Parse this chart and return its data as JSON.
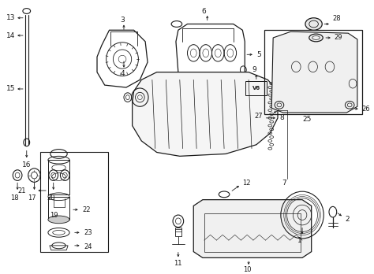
{
  "bg_color": "#ffffff",
  "lc": "#1a1a1a",
  "fig_width": 4.74,
  "fig_height": 3.48,
  "dpi": 100,
  "gray_light": "#cccccc",
  "gray_mid": "#aaaaaa"
}
